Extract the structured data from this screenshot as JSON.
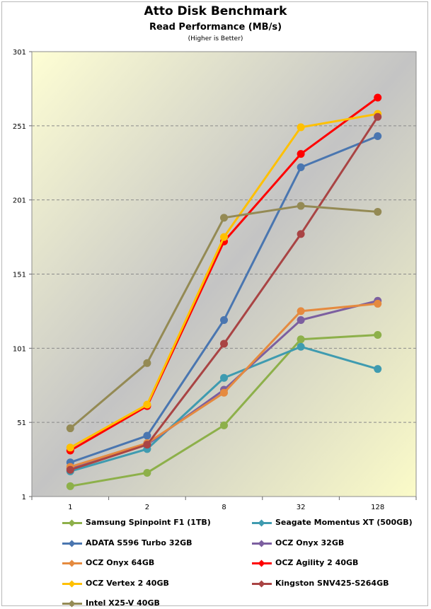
{
  "chart_data": {
    "type": "line",
    "title": "Atto Disk Benchmark",
    "subtitle": "Read Performance (MB/s)",
    "note": "(Higher is Better)",
    "categories": [
      "1",
      "2",
      "8",
      "32",
      "128"
    ],
    "y_ticks": [
      "1",
      "51",
      "101",
      "151",
      "201",
      "251",
      "301"
    ],
    "ylim": [
      1,
      301
    ],
    "grid": "horizontal dashed",
    "legend_position": "bottom",
    "series": [
      {
        "name": "Samsung Spinpoint F1 (1TB)",
        "color": "#8db04a",
        "values": [
          8,
          17,
          49,
          107,
          110
        ]
      },
      {
        "name": "Seagate Momentus XT (500GB)",
        "color": "#3f9bb0",
        "values": [
          18,
          33,
          81,
          102,
          87
        ]
      },
      {
        "name": "ADATA S596 Turbo 32GB",
        "color": "#4a76b0",
        "values": [
          24,
          42,
          120,
          223,
          244
        ]
      },
      {
        "name": "OCZ Onyx 32GB",
        "color": "#7c5fa0",
        "values": [
          20,
          36,
          73,
          120,
          133
        ]
      },
      {
        "name": "OCZ Onyx 64GB",
        "color": "#e58a3f",
        "values": [
          21,
          37,
          71,
          126,
          131
        ]
      },
      {
        "name": "OCZ Agility 2 40GB",
        "color": "#ff0000",
        "values": [
          32,
          62,
          173,
          232,
          270
        ]
      },
      {
        "name": "OCZ Vertex 2 40GB",
        "color": "#ffc000",
        "values": [
          34,
          63,
          176,
          250,
          259
        ]
      },
      {
        "name": "Kingston SNV425-S264GB",
        "color": "#a94444",
        "values": [
          19,
          36,
          104,
          178,
          257
        ]
      },
      {
        "name": "Intel X25-V 40GB",
        "color": "#948a54",
        "values": [
          47,
          91,
          189,
          197,
          193
        ]
      }
    ]
  }
}
